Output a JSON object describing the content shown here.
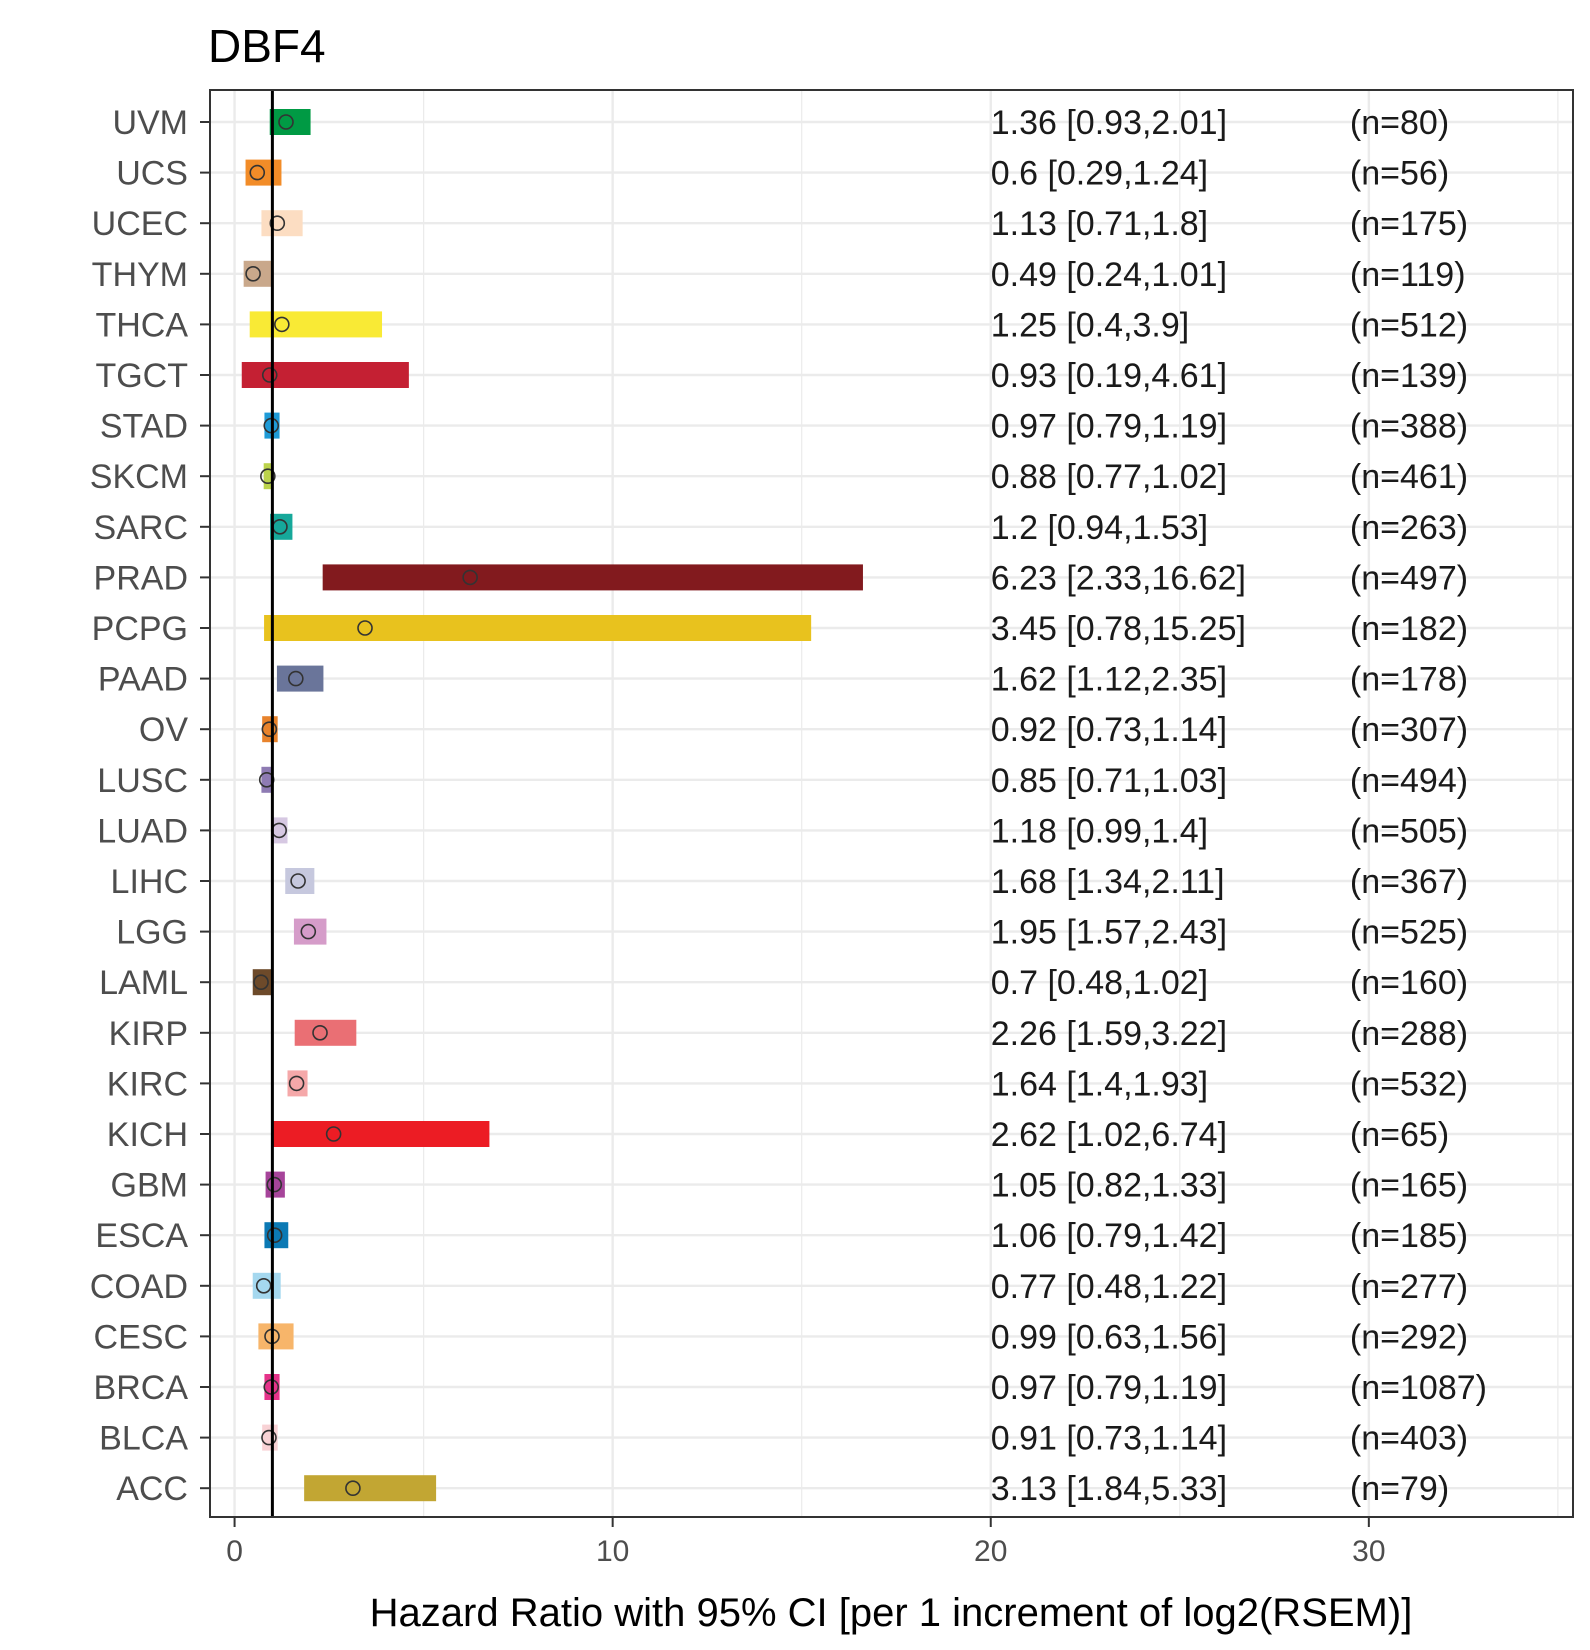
{
  "chart_data": {
    "type": "bar",
    "subtype": "forest-plot",
    "title": "DBF4",
    "xlabel": "Hazard Ratio with 95% CI [per 1 increment of log2(RSEM)]",
    "ylabel": "",
    "xlim": [
      -0.65,
      35.4
    ],
    "xticks": [
      0,
      10,
      20,
      30
    ],
    "xtick_labels": [
      "0",
      "10",
      "20",
      "30"
    ],
    "reference_line": 1,
    "grid": true,
    "legend": "none",
    "rows": [
      {
        "name": "UVM",
        "hr": 1.36,
        "lo": 0.93,
        "hi": 2.01,
        "ci_text": "1.36 [0.93,2.01]",
        "n_text": "(n=80)",
        "color": "#009A44"
      },
      {
        "name": "UCS",
        "hr": 0.6,
        "lo": 0.29,
        "hi": 1.24,
        "ci_text": "0.6 [0.29,1.24]",
        "n_text": "(n=56)",
        "color": "#F28C28"
      },
      {
        "name": "UCEC",
        "hr": 1.13,
        "lo": 0.71,
        "hi": 1.8,
        "ci_text": "1.13 [0.71,1.8]",
        "n_text": "(n=175)",
        "color": "#FCDDC2"
      },
      {
        "name": "THYM",
        "hr": 0.49,
        "lo": 0.24,
        "hi": 1.01,
        "ci_text": "0.49 [0.24,1.01]",
        "n_text": "(n=119)",
        "color": "#C9A88B"
      },
      {
        "name": "THCA",
        "hr": 1.25,
        "lo": 0.4,
        "hi": 3.9,
        "ci_text": "1.25 [0.4,3.9]",
        "n_text": "(n=512)",
        "color": "#F9EA35"
      },
      {
        "name": "TGCT",
        "hr": 0.93,
        "lo": 0.19,
        "hi": 4.61,
        "ci_text": "0.93 [0.19,4.61]",
        "n_text": "(n=139)",
        "color": "#C42033"
      },
      {
        "name": "STAD",
        "hr": 0.97,
        "lo": 0.79,
        "hi": 1.19,
        "ci_text": "0.97 [0.79,1.19]",
        "n_text": "(n=388)",
        "color": "#1F9BD7"
      },
      {
        "name": "SKCM",
        "hr": 0.88,
        "lo": 0.77,
        "hi": 1.02,
        "ci_text": "0.88 [0.77,1.02]",
        "n_text": "(n=461)",
        "color": "#BCD34C"
      },
      {
        "name": "SARC",
        "hr": 1.2,
        "lo": 0.94,
        "hi": 1.53,
        "ci_text": "1.2 [0.94,1.53]",
        "n_text": "(n=263)",
        "color": "#16A89A"
      },
      {
        "name": "PRAD",
        "hr": 6.23,
        "lo": 2.33,
        "hi": 16.62,
        "ci_text": "6.23 [2.33,16.62]",
        "n_text": "(n=497)",
        "color": "#821A1E"
      },
      {
        "name": "PCPG",
        "hr": 3.45,
        "lo": 0.78,
        "hi": 15.25,
        "ci_text": "3.45 [0.78,15.25]",
        "n_text": "(n=182)",
        "color": "#E8C21E"
      },
      {
        "name": "PAAD",
        "hr": 1.62,
        "lo": 1.12,
        "hi": 2.35,
        "ci_text": "1.62 [1.12,2.35]",
        "n_text": "(n=178)",
        "color": "#6A759A"
      },
      {
        "name": "OV",
        "hr": 0.92,
        "lo": 0.73,
        "hi": 1.14,
        "ci_text": "0.92 [0.73,1.14]",
        "n_text": "(n=307)",
        "color": "#E8832C"
      },
      {
        "name": "LUSC",
        "hr": 0.85,
        "lo": 0.71,
        "hi": 1.03,
        "ci_text": "0.85 [0.71,1.03]",
        "n_text": "(n=494)",
        "color": "#8E7BB3"
      },
      {
        "name": "LUAD",
        "hr": 1.18,
        "lo": 0.99,
        "hi": 1.4,
        "ci_text": "1.18 [0.99,1.4]",
        "n_text": "(n=505)",
        "color": "#D6C8E2"
      },
      {
        "name": "LIHC",
        "hr": 1.68,
        "lo": 1.34,
        "hi": 2.11,
        "ci_text": "1.68 [1.34,2.11]",
        "n_text": "(n=367)",
        "color": "#C6C8DE"
      },
      {
        "name": "LGG",
        "hr": 1.95,
        "lo": 1.57,
        "hi": 2.43,
        "ci_text": "1.95 [1.57,2.43]",
        "n_text": "(n=525)",
        "color": "#D59CC9"
      },
      {
        "name": "LAML",
        "hr": 0.7,
        "lo": 0.48,
        "hi": 1.02,
        "ci_text": "0.7 [0.48,1.02]",
        "n_text": "(n=160)",
        "color": "#6D4A2A"
      },
      {
        "name": "KIRP",
        "hr": 2.26,
        "lo": 1.59,
        "hi": 3.22,
        "ci_text": "2.26 [1.59,3.22]",
        "n_text": "(n=288)",
        "color": "#EA6F74"
      },
      {
        "name": "KIRC",
        "hr": 1.64,
        "lo": 1.4,
        "hi": 1.93,
        "ci_text": "1.64 [1.4,1.93]",
        "n_text": "(n=532)",
        "color": "#F5A8A9"
      },
      {
        "name": "KICH",
        "hr": 2.62,
        "lo": 1.02,
        "hi": 6.74,
        "ci_text": "2.62 [1.02,6.74]",
        "n_text": "(n=65)",
        "color": "#EC1C24"
      },
      {
        "name": "GBM",
        "hr": 1.05,
        "lo": 0.82,
        "hi": 1.33,
        "ci_text": "1.05 [0.82,1.33]",
        "n_text": "(n=165)",
        "color": "#A6449A"
      },
      {
        "name": "ESCA",
        "hr": 1.06,
        "lo": 0.79,
        "hi": 1.42,
        "ci_text": "1.06 [0.79,1.42]",
        "n_text": "(n=185)",
        "color": "#0B79B4"
      },
      {
        "name": "COAD",
        "hr": 0.77,
        "lo": 0.48,
        "hi": 1.22,
        "ci_text": "0.77 [0.48,1.22]",
        "n_text": "(n=277)",
        "color": "#A5D8EF"
      },
      {
        "name": "CESC",
        "hr": 0.99,
        "lo": 0.63,
        "hi": 1.56,
        "ci_text": "0.99 [0.63,1.56]",
        "n_text": "(n=292)",
        "color": "#F7B56A"
      },
      {
        "name": "BRCA",
        "hr": 0.97,
        "lo": 0.79,
        "hi": 1.19,
        "ci_text": "0.97 [0.79,1.19]",
        "n_text": "(n=1087)",
        "color": "#E5338A"
      },
      {
        "name": "BLCA",
        "hr": 0.91,
        "lo": 0.73,
        "hi": 1.14,
        "ci_text": "0.91 [0.73,1.14]",
        "n_text": "(n=403)",
        "color": "#F8D2D5"
      },
      {
        "name": "ACC",
        "hr": 3.13,
        "lo": 1.84,
        "hi": 5.33,
        "ci_text": "3.13 [1.84,5.33]",
        "n_text": "(n=79)",
        "color": "#C2A633"
      }
    ],
    "ci_column_x": 20,
    "n_column_x": 29.5
  }
}
